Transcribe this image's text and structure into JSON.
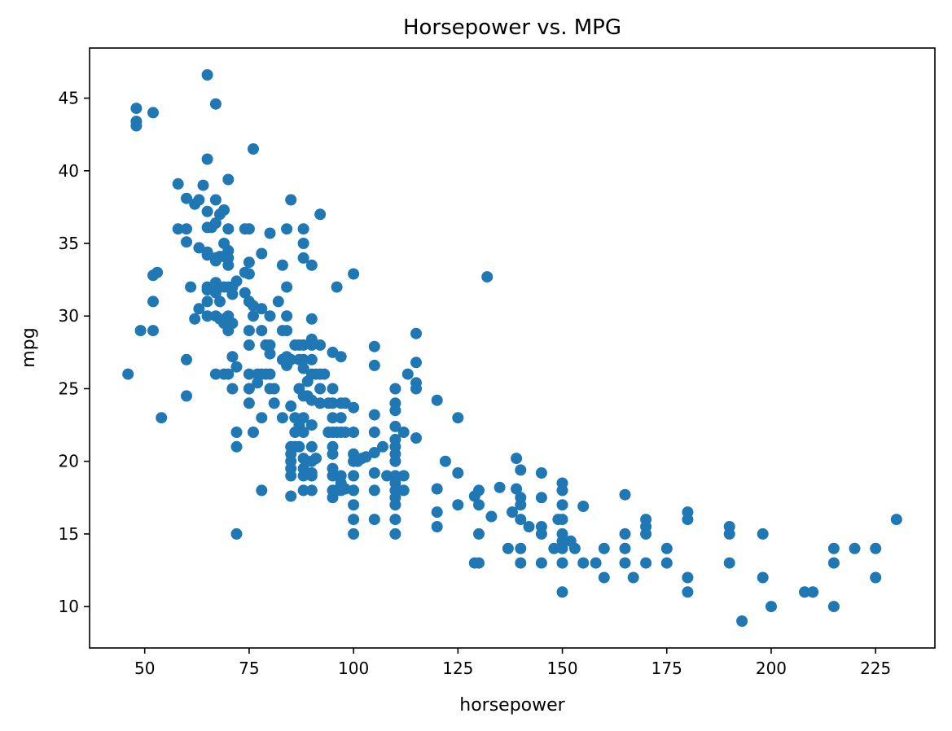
{
  "chart_data": {
    "type": "scatter",
    "title": "Horsepower vs. MPG",
    "xlabel": "horsepower",
    "ylabel": "mpg",
    "xlim": [
      36.8,
      239.2
    ],
    "ylim": [
      7.15,
      48.45
    ],
    "xticks": [
      50,
      75,
      100,
      125,
      150,
      175,
      200,
      225
    ],
    "yticks": [
      10,
      15,
      20,
      25,
      30,
      35,
      40,
      45
    ],
    "grid": false,
    "legend": "none",
    "marker_color": "#1f77b4",
    "points": [
      [
        46,
        26
      ],
      [
        48,
        44.3
      ],
      [
        48,
        43.4
      ],
      [
        48,
        43.1
      ],
      [
        49,
        29
      ],
      [
        52,
        44
      ],
      [
        52,
        32.8
      ],
      [
        52,
        31
      ],
      [
        52,
        29
      ],
      [
        53,
        33
      ],
      [
        54,
        23
      ],
      [
        58,
        39.1
      ],
      [
        58,
        36
      ],
      [
        60,
        38.1
      ],
      [
        60,
        36
      ],
      [
        60,
        35.1
      ],
      [
        60,
        27
      ],
      [
        60,
        24.5
      ],
      [
        61,
        32
      ],
      [
        62,
        37.7
      ],
      [
        62,
        29.8
      ],
      [
        63,
        38
      ],
      [
        63,
        34.7
      ],
      [
        63,
        30.5
      ],
      [
        64,
        39
      ],
      [
        65,
        46.6
      ],
      [
        65,
        40.8
      ],
      [
        65,
        37.2
      ],
      [
        65,
        36.1
      ],
      [
        65,
        34.4
      ],
      [
        65,
        34.2
      ],
      [
        65,
        32
      ],
      [
        65,
        31.8
      ],
      [
        65,
        31
      ],
      [
        65,
        30
      ],
      [
        66,
        36.1
      ],
      [
        67,
        44.6
      ],
      [
        67,
        38
      ],
      [
        67,
        36.4
      ],
      [
        67,
        34
      ],
      [
        67,
        33.8
      ],
      [
        67,
        32.3
      ],
      [
        67,
        31.6
      ],
      [
        67,
        30
      ],
      [
        67,
        26
      ],
      [
        68,
        37
      ],
      [
        68,
        34.1
      ],
      [
        68,
        31
      ],
      [
        68,
        29.8
      ],
      [
        69,
        37.3
      ],
      [
        69,
        35
      ],
      [
        69,
        34.1
      ],
      [
        69,
        32
      ],
      [
        69,
        29.5
      ],
      [
        69,
        26
      ],
      [
        70,
        39.4
      ],
      [
        70,
        36
      ],
      [
        70,
        34.5
      ],
      [
        70,
        34
      ],
      [
        70,
        33.5
      ],
      [
        70,
        32
      ],
      [
        70,
        30
      ],
      [
        70,
        29
      ],
      [
        70,
        26
      ],
      [
        71,
        32
      ],
      [
        71,
        31.5
      ],
      [
        71,
        29.5
      ],
      [
        71,
        27.2
      ],
      [
        71,
        25
      ],
      [
        72,
        32.4
      ],
      [
        72,
        26.5
      ],
      [
        72,
        22
      ],
      [
        72,
        21
      ],
      [
        72,
        15
      ],
      [
        74,
        36
      ],
      [
        74,
        33
      ],
      [
        74,
        31.6
      ],
      [
        75,
        36
      ],
      [
        75,
        33.7
      ],
      [
        75,
        32.9
      ],
      [
        75,
        31
      ],
      [
        75,
        29
      ],
      [
        75,
        28
      ],
      [
        75,
        26
      ],
      [
        75,
        25
      ],
      [
        75,
        24
      ],
      [
        76,
        30.7
      ],
      [
        76,
        30
      ],
      [
        76,
        22
      ],
      [
        76,
        41.5
      ],
      [
        77,
        26
      ],
      [
        77,
        25.4
      ],
      [
        78,
        34.3
      ],
      [
        78,
        30.5
      ],
      [
        78,
        29
      ],
      [
        78,
        26
      ],
      [
        78,
        23
      ],
      [
        78,
        18
      ],
      [
        79,
        28
      ],
      [
        79,
        26
      ],
      [
        80,
        35.7
      ],
      [
        80,
        30
      ],
      [
        80,
        28
      ],
      [
        80,
        27.4
      ],
      [
        80,
        26
      ],
      [
        80,
        25
      ],
      [
        81,
        25
      ],
      [
        81,
        24
      ],
      [
        82,
        31
      ],
      [
        83,
        33.5
      ],
      [
        83,
        29
      ],
      [
        83,
        27
      ],
      [
        83,
        23
      ],
      [
        84,
        36
      ],
      [
        84,
        32
      ],
      [
        84,
        30
      ],
      [
        84,
        29
      ],
      [
        84,
        27.2
      ],
      [
        84,
        26.6
      ],
      [
        85,
        38
      ],
      [
        85,
        27
      ],
      [
        85,
        23.8
      ],
      [
        85,
        21
      ],
      [
        85,
        20.5
      ],
      [
        85,
        20
      ],
      [
        85,
        19.5
      ],
      [
        85,
        19
      ],
      [
        85,
        17.6
      ],
      [
        86,
        28
      ],
      [
        86,
        23
      ],
      [
        86,
        22
      ],
      [
        86,
        21
      ],
      [
        87,
        28
      ],
      [
        87,
        27
      ],
      [
        87,
        25
      ],
      [
        87,
        22.5
      ],
      [
        87,
        21
      ],
      [
        88,
        36
      ],
      [
        88,
        35
      ],
      [
        88,
        34
      ],
      [
        88,
        28
      ],
      [
        88,
        27
      ],
      [
        88,
        26.4
      ],
      [
        88,
        24.5
      ],
      [
        88,
        23
      ],
      [
        88,
        22
      ],
      [
        88,
        20.2
      ],
      [
        88,
        19.5
      ],
      [
        88,
        19
      ],
      [
        88,
        18
      ],
      [
        89,
        25.5
      ],
      [
        89,
        24.5
      ],
      [
        89,
        20
      ],
      [
        90,
        33.5
      ],
      [
        90,
        29.8
      ],
      [
        90,
        28.4
      ],
      [
        90,
        28
      ],
      [
        90,
        27
      ],
      [
        90,
        26
      ],
      [
        90,
        24.2
      ],
      [
        90,
        22.5
      ],
      [
        90,
        21
      ],
      [
        90,
        20
      ],
      [
        90,
        19.2
      ],
      [
        90,
        19
      ],
      [
        90,
        18
      ],
      [
        91,
        26
      ],
      [
        91,
        20.2
      ],
      [
        92,
        37
      ],
      [
        92,
        28
      ],
      [
        92,
        26
      ],
      [
        92,
        25
      ],
      [
        92,
        24
      ],
      [
        93,
        26
      ],
      [
        94,
        24
      ],
      [
        94,
        22
      ],
      [
        95,
        27.5
      ],
      [
        95,
        25
      ],
      [
        95,
        24
      ],
      [
        95,
        23
      ],
      [
        95,
        22
      ],
      [
        95,
        21
      ],
      [
        95,
        20.5
      ],
      [
        95,
        19.5
      ],
      [
        95,
        19
      ],
      [
        95,
        18
      ],
      [
        95,
        17.5
      ],
      [
        96,
        32
      ],
      [
        96,
        22
      ],
      [
        96,
        18
      ],
      [
        97,
        27.2
      ],
      [
        97,
        24
      ],
      [
        97,
        23
      ],
      [
        97,
        22
      ],
      [
        97,
        19
      ],
      [
        97,
        18.5
      ],
      [
        97,
        18
      ],
      [
        98,
        24
      ],
      [
        98,
        22
      ],
      [
        98,
        18.1
      ],
      [
        100,
        32.9
      ],
      [
        100,
        23.7
      ],
      [
        100,
        22
      ],
      [
        100,
        20.5
      ],
      [
        100,
        20
      ],
      [
        100,
        19
      ],
      [
        100,
        18
      ],
      [
        100,
        17
      ],
      [
        100,
        16
      ],
      [
        100,
        15
      ],
      [
        101,
        20
      ],
      [
        102,
        20.2
      ],
      [
        103,
        20.3
      ],
      [
        105,
        27.9
      ],
      [
        105,
        26.6
      ],
      [
        105,
        23.2
      ],
      [
        105,
        22
      ],
      [
        105,
        20.6
      ],
      [
        105,
        19.2
      ],
      [
        105,
        18
      ],
      [
        105,
        16
      ],
      [
        107,
        21
      ],
      [
        108,
        19
      ],
      [
        110,
        25
      ],
      [
        110,
        24
      ],
      [
        110,
        23.5
      ],
      [
        110,
        22.4
      ],
      [
        110,
        21.5
      ],
      [
        110,
        21
      ],
      [
        110,
        20.5
      ],
      [
        110,
        20
      ],
      [
        110,
        19
      ],
      [
        110,
        18.5
      ],
      [
        110,
        18
      ],
      [
        110,
        17.5
      ],
      [
        110,
        17
      ],
      [
        110,
        16
      ],
      [
        110,
        15
      ],
      [
        112,
        22
      ],
      [
        112,
        19
      ],
      [
        112,
        18
      ],
      [
        113,
        26
      ],
      [
        115,
        28.8
      ],
      [
        115,
        26.8
      ],
      [
        115,
        25.4
      ],
      [
        115,
        25
      ],
      [
        115,
        21.6
      ],
      [
        120,
        24.2
      ],
      [
        120,
        18.1
      ],
      [
        120,
        16.5
      ],
      [
        120,
        15.5
      ],
      [
        122,
        20
      ],
      [
        125,
        23
      ],
      [
        125,
        19.2
      ],
      [
        125,
        17
      ],
      [
        129,
        17.6
      ],
      [
        129,
        13
      ],
      [
        130,
        18
      ],
      [
        130,
        17
      ],
      [
        130,
        15
      ],
      [
        130,
        13
      ],
      [
        132,
        32.7
      ],
      [
        133,
        16.2
      ],
      [
        135,
        18.2
      ],
      [
        137,
        14
      ],
      [
        138,
        16.5
      ],
      [
        139,
        20.2
      ],
      [
        139,
        18.1
      ],
      [
        140,
        19.4
      ],
      [
        140,
        17.5
      ],
      [
        140,
        17
      ],
      [
        140,
        16
      ],
      [
        140,
        14
      ],
      [
        140,
        13
      ],
      [
        142,
        15.5
      ],
      [
        145,
        19.2
      ],
      [
        145,
        17.5
      ],
      [
        145,
        15.5
      ],
      [
        145,
        15
      ],
      [
        145,
        13
      ],
      [
        148,
        14
      ],
      [
        149,
        16
      ],
      [
        150,
        18.5
      ],
      [
        150,
        18
      ],
      [
        150,
        17
      ],
      [
        150,
        16
      ],
      [
        150,
        15
      ],
      [
        150,
        14.5
      ],
      [
        150,
        14
      ],
      [
        150,
        13
      ],
      [
        150,
        11
      ],
      [
        152,
        14.5
      ],
      [
        153,
        14
      ],
      [
        155,
        16.9
      ],
      [
        155,
        13
      ],
      [
        158,
        13
      ],
      [
        160,
        14
      ],
      [
        160,
        12
      ],
      [
        165,
        17.7
      ],
      [
        165,
        15
      ],
      [
        165,
        14
      ],
      [
        165,
        13
      ],
      [
        167,
        12
      ],
      [
        170,
        16
      ],
      [
        170,
        15.5
      ],
      [
        170,
        15
      ],
      [
        170,
        13
      ],
      [
        175,
        14
      ],
      [
        175,
        13
      ],
      [
        180,
        16.5
      ],
      [
        180,
        16
      ],
      [
        180,
        12
      ],
      [
        180,
        11
      ],
      [
        190,
        15.5
      ],
      [
        190,
        15
      ],
      [
        190,
        13
      ],
      [
        193,
        9
      ],
      [
        198,
        15
      ],
      [
        198,
        12
      ],
      [
        200,
        10
      ],
      [
        208,
        11
      ],
      [
        210,
        11
      ],
      [
        215,
        14
      ],
      [
        215,
        13
      ],
      [
        215,
        10
      ],
      [
        220,
        14
      ],
      [
        225,
        14
      ],
      [
        225,
        12
      ],
      [
        230,
        16
      ]
    ]
  }
}
